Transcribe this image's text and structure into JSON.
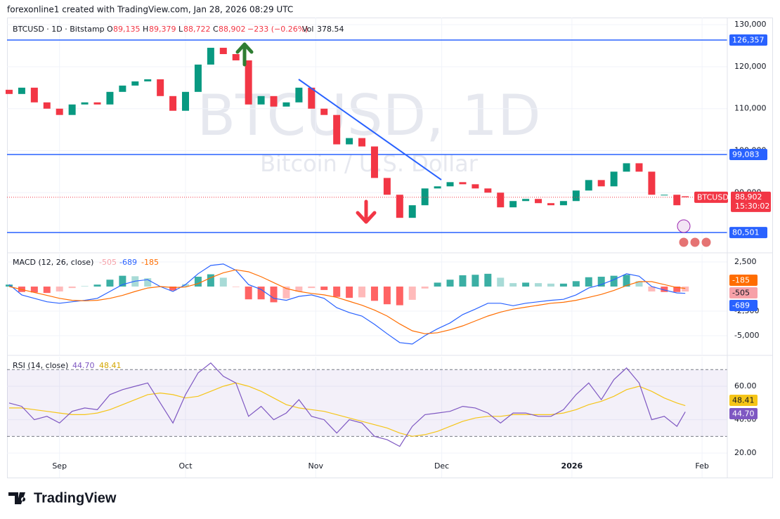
{
  "header": {
    "caption": "forexonline1 created with TradingView.com, Jan 28, 2026 08:29 UTC"
  },
  "footer": {
    "brand": "TradingView"
  },
  "chart_data": [
    {
      "type": "candlestick",
      "title": "BTCUSD, 1D",
      "subtitle": "Bitcoin / U.S. Dollar",
      "legend": {
        "symbol": "BTCUSD · 1D · Bitstamp",
        "fields": [
          {
            "label": "O",
            "value": "89,135"
          },
          {
            "label": "H",
            "value": "89,379"
          },
          {
            "label": "L",
            "value": "88,722"
          },
          {
            "label": "C",
            "value": "88,902"
          }
        ],
        "change": "−233 (−0.26%)",
        "volume_label": "Vol",
        "volume": "378.54"
      },
      "x": [
        -12,
        -9,
        -6,
        -3,
        0,
        3,
        6,
        9,
        12,
        15,
        18,
        21,
        24,
        27,
        30,
        33,
        36,
        39,
        42,
        45,
        48,
        51,
        54,
        57,
        60,
        63,
        66,
        69,
        72,
        75,
        78,
        81,
        84,
        87,
        90,
        93,
        96,
        99,
        102,
        105,
        108,
        111,
        114,
        117,
        120,
        123,
        126,
        129,
        132,
        135,
        138,
        141,
        144,
        147,
        149
      ],
      "open": [
        114500,
        113500,
        115000,
        111500,
        110000,
        108500,
        111000,
        111500,
        111000,
        114000,
        115500,
        116500,
        117000,
        113000,
        109500,
        114000,
        120500,
        124500,
        123000,
        121500,
        111000,
        113000,
        110500,
        111500,
        115000,
        110000,
        108500,
        101500,
        103000,
        101000,
        93500,
        89500,
        84000,
        87000,
        91000,
        91500,
        92500,
        92000,
        91000,
        90000,
        86500,
        88000,
        88500,
        87500,
        87000,
        88000,
        90500,
        93000,
        91500,
        95000,
        97000,
        95000,
        89500,
        89500,
        89135
      ],
      "close": [
        113500,
        115000,
        111500,
        110000,
        108500,
        111000,
        111500,
        111000,
        114000,
        115500,
        116500,
        117000,
        113000,
        109500,
        114000,
        120500,
        124500,
        123000,
        121500,
        111000,
        113000,
        110500,
        111500,
        115000,
        110000,
        108500,
        101500,
        103000,
        101000,
        93500,
        89500,
        84000,
        87000,
        91000,
        91500,
        92500,
        92000,
        91000,
        90000,
        86500,
        88000,
        88500,
        87500,
        87000,
        88000,
        90500,
        93000,
        91500,
        95000,
        97000,
        95000,
        89500,
        89500,
        87000,
        88902
      ],
      "up_color": "#089981",
      "down_color": "#f23645",
      "xlim": [
        -12.5,
        159
      ],
      "xticks": [
        {
          "value": 0,
          "label": "Sep"
        },
        {
          "value": 30,
          "label": "Oct"
        },
        {
          "value": 61,
          "label": "Nov"
        },
        {
          "value": 91,
          "label": "Dec"
        },
        {
          "value": 122,
          "label": "2026"
        },
        {
          "value": 153,
          "label": "Feb"
        }
      ],
      "ylim": [
        76000,
        131700
      ],
      "yticks": [
        {
          "value": 130000,
          "label": "130,000"
        },
        {
          "value": 120000,
          "label": "120,000"
        },
        {
          "value": 110000,
          "label": "110,000"
        },
        {
          "value": 100000,
          "label": "100,000"
        },
        {
          "value": 90000,
          "label": "90,000"
        }
      ],
      "levels": [
        {
          "value": 126357,
          "label": "126,357"
        },
        {
          "value": 99083,
          "label": "99,083"
        },
        {
          "value": 80501,
          "label": "80,501"
        }
      ],
      "level_color": "#2962ff",
      "last_symbol": "BTCUSD",
      "last_label": "88,902",
      "countdown": "15:30:02",
      "grid": true
    },
    {
      "type": "macd",
      "title": "MACD (12, 26, close)",
      "x": [
        -12,
        -9,
        -6,
        -3,
        0,
        3,
        6,
        9,
        12,
        15,
        18,
        21,
        24,
        27,
        30,
        33,
        36,
        39,
        42,
        45,
        48,
        51,
        54,
        57,
        60,
        63,
        66,
        69,
        72,
        75,
        78,
        81,
        84,
        87,
        90,
        93,
        96,
        99,
        102,
        105,
        108,
        111,
        114,
        117,
        120,
        123,
        126,
        129,
        132,
        135,
        138,
        141,
        144,
        147,
        149
      ],
      "series": [
        {
          "style": "histogram",
          "color": "#f7a1a8",
          "up_color": "#26a69a",
          "down_color": "#ff5252",
          "values": [
            200,
            -550,
            -600,
            -650,
            -500,
            -150,
            50,
            200,
            700,
            1100,
            1050,
            850,
            0,
            -400,
            250,
            1000,
            1250,
            900,
            -50,
            -1300,
            -1300,
            -1600,
            -1200,
            -500,
            -150,
            -350,
            -1050,
            -1150,
            -1100,
            -1450,
            -1800,
            -1900,
            -1350,
            -200,
            400,
            700,
            1150,
            1200,
            1300,
            900,
            350,
            400,
            350,
            300,
            300,
            550,
            950,
            1000,
            1100,
            1200,
            550,
            -500,
            -550,
            -550,
            -505
          ]
        },
        {
          "style": "line",
          "color": "#2962ff",
          "values": [
            200,
            -850,
            -1200,
            -1550,
            -1700,
            -1550,
            -1400,
            -1200,
            -500,
            200,
            550,
            700,
            0,
            -500,
            200,
            1300,
            2150,
            2300,
            1650,
            200,
            -300,
            -1200,
            -1400,
            -1000,
            -850,
            -1200,
            -2150,
            -2650,
            -3000,
            -3850,
            -4800,
            -5700,
            -5850,
            -5000,
            -4300,
            -3700,
            -2850,
            -2300,
            -1700,
            -1700,
            -1950,
            -1700,
            -1550,
            -1400,
            -1300,
            -850,
            -150,
            200,
            700,
            1300,
            1050,
            0,
            -350,
            -650,
            -689
          ]
        },
        {
          "style": "line",
          "color": "#ff6d00",
          "values": [
            0,
            -300,
            -600,
            -900,
            -1200,
            -1400,
            -1450,
            -1400,
            -1200,
            -900,
            -500,
            -150,
            0,
            -100,
            -50,
            300,
            900,
            1400,
            1700,
            1500,
            1000,
            400,
            -200,
            -500,
            -700,
            -850,
            -1100,
            -1500,
            -1900,
            -2400,
            -3000,
            -3800,
            -4500,
            -4800,
            -4700,
            -4400,
            -4000,
            -3500,
            -3000,
            -2600,
            -2300,
            -2100,
            -1900,
            -1700,
            -1600,
            -1400,
            -1100,
            -800,
            -400,
            100,
            500,
            500,
            200,
            -100,
            -185
          ]
        }
      ],
      "xlim": [
        -12.5,
        159
      ],
      "xticks": [
        {
          "value": 0,
          "label": "Sep"
        },
        {
          "value": 30,
          "label": "Oct"
        },
        {
          "value": 61,
          "label": "Nov"
        },
        {
          "value": 91,
          "label": "Dec"
        },
        {
          "value": 122,
          "label": "2026"
        },
        {
          "value": 153,
          "label": "Feb"
        }
      ],
      "ylim": [
        -6930,
        3290
      ],
      "yticks": [
        {
          "value": 2500,
          "label": "2,500"
        },
        {
          "value": -2500,
          "label": "-2,500"
        },
        {
          "value": -5000,
          "label": "-5,000"
        }
      ],
      "grid": true
    },
    {
      "type": "rsi",
      "title": "RSI (14, close)",
      "x": [
        -12,
        -9,
        -6,
        -3,
        0,
        3,
        6,
        9,
        12,
        15,
        18,
        21,
        24,
        27,
        30,
        33,
        36,
        39,
        42,
        45,
        48,
        51,
        54,
        57,
        60,
        63,
        66,
        69,
        72,
        75,
        78,
        81,
        84,
        87,
        90,
        93,
        96,
        99,
        102,
        105,
        108,
        111,
        114,
        117,
        120,
        123,
        126,
        129,
        132,
        135,
        138,
        141,
        144,
        147,
        149
      ],
      "series": [
        {
          "color": "#7e57c2",
          "legend_value": "44.70",
          "values": [
            50,
            48,
            40,
            42,
            38,
            45,
            47,
            46,
            55,
            58,
            60,
            62,
            50,
            38,
            55,
            68,
            74,
            66,
            62,
            42,
            48,
            40,
            44,
            52,
            42,
            40,
            32,
            40,
            38,
            30,
            28,
            24,
            36,
            43,
            44,
            45,
            48,
            47,
            44,
            38,
            44,
            44,
            42,
            42,
            46,
            55,
            62,
            52,
            64,
            71,
            62,
            40,
            42,
            36,
            44.7
          ]
        },
        {
          "color": "#f5c518",
          "legend_value": "48.41",
          "values": [
            47,
            47,
            46,
            45,
            44,
            43,
            43,
            44,
            46,
            49,
            52,
            55,
            56,
            55,
            53,
            54,
            57,
            60,
            62,
            60,
            57,
            53,
            49,
            47,
            46,
            45,
            43,
            41,
            39,
            37,
            35,
            32,
            30,
            31,
            33,
            36,
            39,
            41,
            42,
            42,
            43,
            43,
            43,
            43,
            44,
            46,
            49,
            51,
            54,
            58,
            60,
            57,
            53,
            50,
            48.41
          ]
        }
      ],
      "bands": [
        70,
        30
      ],
      "xlim": [
        -12.5,
        159
      ],
      "xticks": [
        {
          "value": 0,
          "label": "Sep"
        },
        {
          "value": 30,
          "label": "Oct"
        },
        {
          "value": 61,
          "label": "Nov"
        },
        {
          "value": 91,
          "label": "Dec"
        },
        {
          "value": 122,
          "label": "2026"
        },
        {
          "value": 153,
          "label": "Feb"
        }
      ],
      "ylim": [
        5.3,
        77.7
      ],
      "yticks": [
        {
          "value": 60,
          "label": "60.00"
        },
        {
          "value": 40,
          "label": "40.00"
        },
        {
          "value": 20,
          "label": "20.00"
        }
      ],
      "grid": true
    }
  ]
}
